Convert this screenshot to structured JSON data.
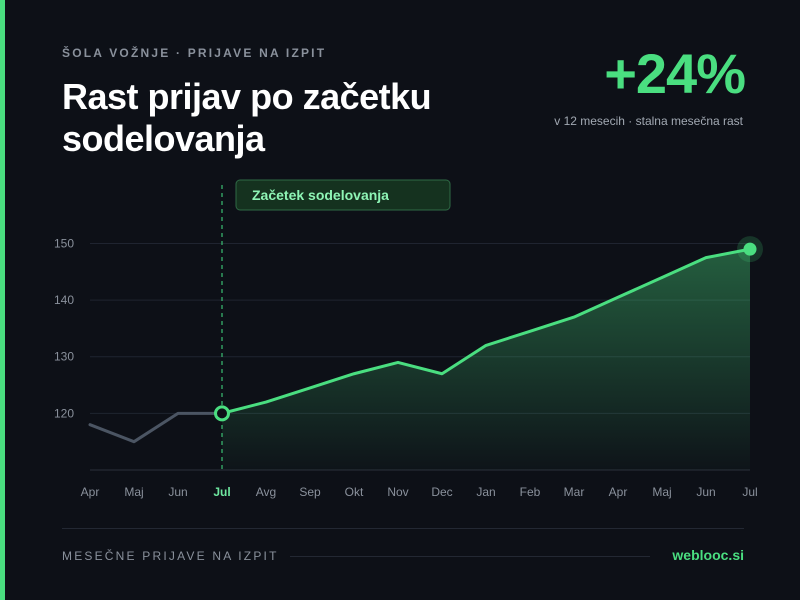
{
  "header": {
    "eyebrow": "ŠOLA VOŽNJE · PRIJAVE NA IZPIT",
    "title": "Rast prijav po začetku sodelovanja"
  },
  "kpi": {
    "value": "+24%",
    "note": "v 12 mesecih · stalna mesečna rast"
  },
  "footer": {
    "label": "MESEČNE PRIJAVE NA IZPIT",
    "brand": "weblooc.si"
  },
  "colors": {
    "accent": "#4ade80",
    "before_line": "#4b5563",
    "background": "#0d1017"
  },
  "chart_data": {
    "type": "area",
    "categories": [
      "Apr",
      "Maj",
      "Jun",
      "Jul",
      "Avg",
      "Sep",
      "Okt",
      "Nov",
      "Dec",
      "Jan",
      "Feb",
      "Mar",
      "Apr",
      "Maj",
      "Jun",
      "Jul"
    ],
    "values": [
      118,
      115,
      120,
      120,
      122,
      124.5,
      127,
      129,
      127,
      132,
      134.5,
      137,
      140.5,
      144,
      147.5,
      149
    ],
    "yticks": [
      120,
      130,
      140,
      150
    ],
    "ylim": [
      110,
      151.5
    ],
    "split_index": 3,
    "highlight_index": 3,
    "annotation": "Začetek sodelovanja",
    "grid": true
  }
}
